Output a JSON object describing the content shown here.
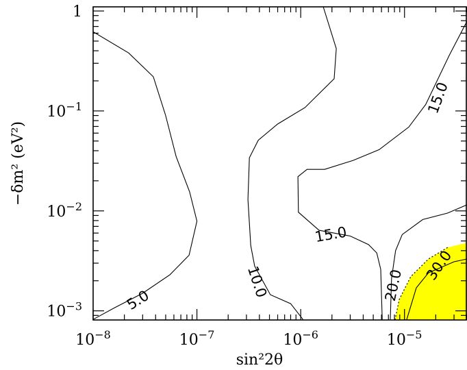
{
  "chart_data": {
    "type": "contour",
    "xlabel": "sin²2θ",
    "ylabel": "−δm² (eV²)",
    "xscale": "log",
    "yscale": "log",
    "xlim": [
      1e-08,
      4e-05
    ],
    "ylim": [
      0.00081,
      1.1
    ],
    "grid": false,
    "x_ticks": [
      {
        "value": 1e-08,
        "base": "10",
        "exp": "−8"
      },
      {
        "value": 1e-07,
        "base": "10",
        "exp": "−7"
      },
      {
        "value": 1e-06,
        "base": "10",
        "exp": "−6"
      },
      {
        "value": 1e-05,
        "base": "10",
        "exp": "−5"
      }
    ],
    "y_ticks": [
      {
        "value": 0.001,
        "base": "10",
        "exp": "−3",
        "text": ""
      },
      {
        "value": 0.01,
        "base": "10",
        "exp": "−2",
        "text": ""
      },
      {
        "value": 0.1,
        "base": "10",
        "exp": "−1",
        "text": ""
      },
      {
        "value": 1,
        "base": "",
        "exp": "",
        "text": "1"
      }
    ],
    "shaded_region": {
      "fill": "#ffff00",
      "boundary": [
        [
          8.1e-06,
          0.00081
        ],
        [
          8.9e-06,
          0.0013
        ],
        [
          1.15e-05,
          0.0022
        ],
        [
          1.7e-05,
          0.0033
        ],
        [
          2.6e-05,
          0.0043
        ],
        [
          4e-05,
          0.0048
        ],
        [
          4e-05,
          0.00081
        ]
      ]
    },
    "contours": [
      {
        "level": "5.0",
        "points": [
          [
            1e-08,
            0.62
          ],
          [
            2.2e-08,
            0.38
          ],
          [
            3.8e-08,
            0.22
          ],
          [
            5e-08,
            0.09
          ],
          [
            6.3e-08,
            0.035
          ],
          [
            8.5e-08,
            0.0155
          ],
          [
            1e-07,
            0.0079
          ],
          [
            8.4e-08,
            0.0036
          ],
          [
            5.5e-08,
            0.0023
          ],
          [
            3e-08,
            0.0015
          ],
          [
            1.6e-08,
            0.00107
          ],
          [
            1e-08,
            0.00082
          ]
        ],
        "label_at": [
          2.7e-08,
          0.00128
        ],
        "label_angle": -32
      },
      {
        "level": "10.0",
        "points": [
          [
            1.65e-06,
            1.1
          ],
          [
            2.2e-06,
            0.42
          ],
          [
            2.1e-06,
            0.21
          ],
          [
            1.1e-06,
            0.108
          ],
          [
            6e-07,
            0.074
          ],
          [
            3.9e-07,
            0.051
          ],
          [
            3.2e-07,
            0.034
          ],
          [
            3.1e-07,
            0.013
          ],
          [
            3.3e-07,
            0.0045
          ],
          [
            3.6e-07,
            0.0028
          ],
          [
            5.1e-07,
            0.00145
          ],
          [
            8e-07,
            0.00118
          ],
          [
            1.05e-06,
            0.00082
          ]
        ],
        "label_at": [
          3.8e-07,
          0.00195
        ],
        "label_angle": 72
      },
      {
        "level": "15.0",
        "points": [
          [
            4e-05,
            0.79
          ],
          [
            2.7e-05,
            0.36
          ],
          [
            1.6e-05,
            0.116
          ],
          [
            1.1e-05,
            0.069
          ],
          [
            5.7e-06,
            0.041
          ],
          [
            3.2e-06,
            0.032
          ],
          [
            1.7e-06,
            0.026
          ],
          [
            1.15e-06,
            0.026
          ],
          [
            9.4e-07,
            0.022
          ],
          [
            9.5e-07,
            0.0097
          ],
          [
            1.5e-06,
            0.0064
          ],
          [
            3e-06,
            0.0056
          ],
          [
            4.5e-06,
            0.0046
          ],
          [
            5.4e-06,
            0.0038
          ],
          [
            5.9e-06,
            0.0026
          ],
          [
            6.1e-06,
            0.00082
          ]
        ],
        "label_at": [
          1.95e-06,
          0.0058
        ],
        "label_angle": -10,
        "label2_at": [
          2.1e-05,
          0.135
        ],
        "label2_angle": -70
      },
      {
        "level": "20.0",
        "points": [
          [
            4e-05,
            0.0115
          ],
          [
            2.6e-05,
            0.0095
          ],
          [
            1.5e-05,
            0.0082
          ],
          [
            9.5e-06,
            0.0058
          ],
          [
            8.2e-06,
            0.004
          ],
          [
            7.5e-06,
            0.0021
          ],
          [
            7.3e-06,
            0.00082
          ]
        ],
        "label_at": [
          7.8e-06,
          0.0018
        ],
        "label_angle": -78
      },
      {
        "level": "30.0",
        "points": [
          [
            1.05e-05,
            0.00082
          ],
          [
            1.3e-05,
            0.0017
          ],
          [
            1.7e-05,
            0.0024
          ],
          [
            3e-05,
            0.0031
          ],
          [
            4e-05,
            0.0033
          ]
        ],
        "label_at": [
          2.15e-05,
          0.00285
        ],
        "label_angle": -55
      }
    ]
  }
}
